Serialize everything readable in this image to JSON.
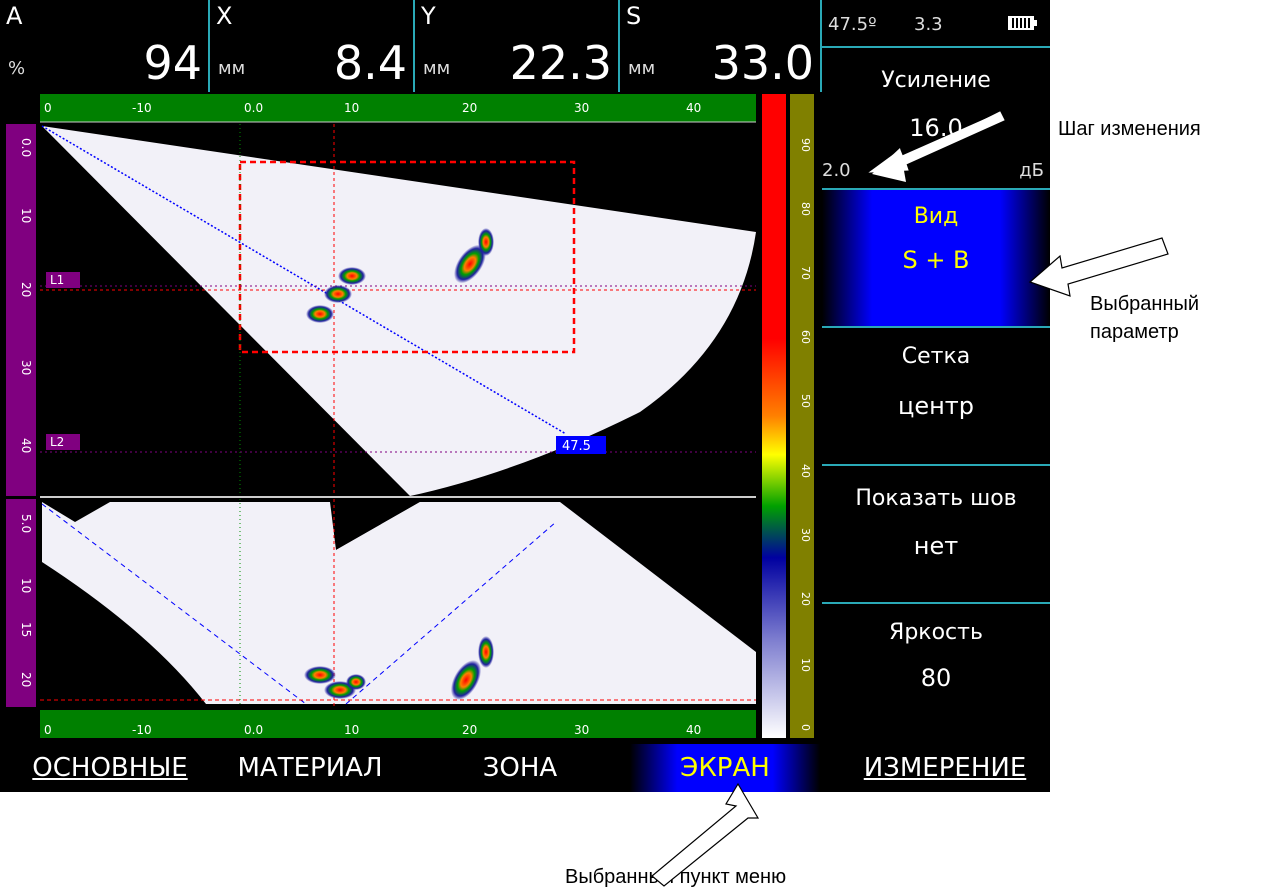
{
  "readouts": [
    {
      "label": "A",
      "unit": "%",
      "value": "94"
    },
    {
      "label": "X",
      "unit": "мм",
      "value": "8.4"
    },
    {
      "label": "Y",
      "unit": "мм",
      "value": "22.3"
    },
    {
      "label": "S",
      "unit": "мм",
      "value": "33.0"
    }
  ],
  "status": {
    "angle": "47.5º",
    "value": "3.3",
    "battery_icon": "battery-full-icon"
  },
  "params": {
    "gain": {
      "title": "Усиление",
      "value": "16.0",
      "step": "2.0",
      "unit": "дБ"
    },
    "view": {
      "title": "Вид",
      "value": "S + B"
    },
    "grid": {
      "title": "Сетка",
      "value": "центр"
    },
    "weld": {
      "title": "Показать шов",
      "value": "нет"
    },
    "brightness": {
      "title": "Яркость",
      "value": "80"
    }
  },
  "scan": {
    "top_ruler": [
      "0",
      "-10",
      "0.0",
      "10",
      "20",
      "30",
      "40"
    ],
    "bottom_ruler": [
      "0",
      "-10",
      "0.0",
      "10",
      "20",
      "30",
      "40"
    ],
    "left_ruler_top": [
      "0.0",
      "10",
      "20",
      "30",
      "40"
    ],
    "left_ruler_bottom": [
      "5.0",
      "10",
      "15",
      "20"
    ],
    "markers": {
      "l1": "L1",
      "l2": "L2",
      "angle_tag": "47.5"
    },
    "palette_ticks": [
      "90",
      "80",
      "70",
      "60",
      "50",
      "40",
      "30",
      "20",
      "10",
      "0"
    ]
  },
  "menu": [
    {
      "label": "ОСНОВНЫЕ",
      "selected": false
    },
    {
      "label": "МАТЕРИАЛ",
      "selected": false
    },
    {
      "label": "ЗОНА",
      "selected": false
    },
    {
      "label": "ЭКРАН",
      "selected": true
    },
    {
      "label": "ИЗМЕРЕНИЕ",
      "selected": false
    }
  ],
  "annotations": {
    "step": "Шаг изменения",
    "selected_param": "Выбранный параметр",
    "selected_menu": "Выбранный пункт меню"
  },
  "colors": {
    "accent_cyan": "#2aa9b7",
    "selection_blue": "#0000ff",
    "selected_text": "#ffff00",
    "ruler_green": "#008000",
    "ruler_purple": "#800080",
    "ruler_olive": "#808000"
  }
}
